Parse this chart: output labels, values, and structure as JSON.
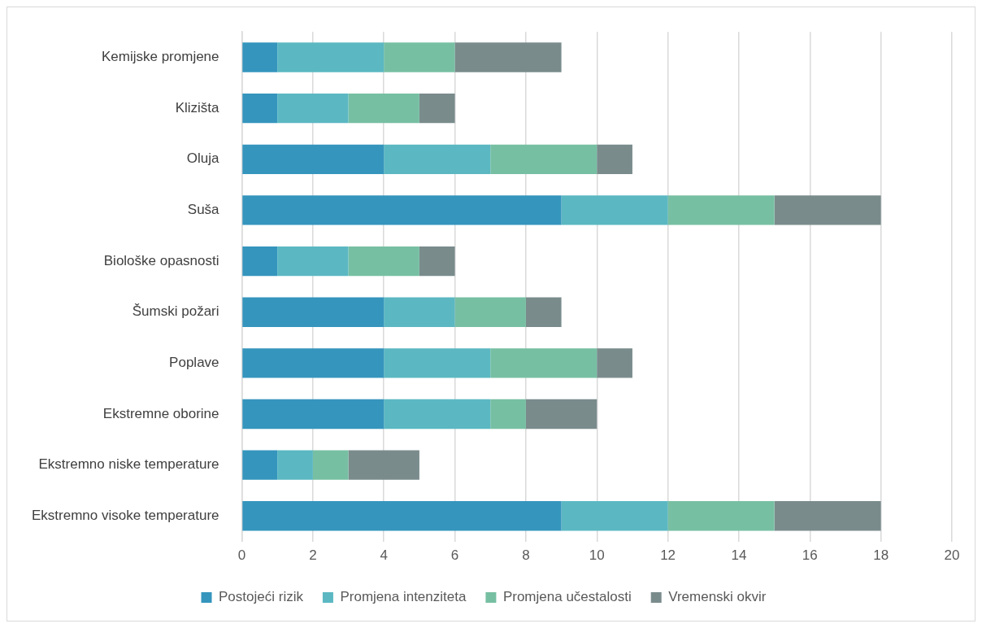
{
  "chart_data": {
    "type": "bar",
    "orientation": "horizontal",
    "stacked": true,
    "categories": [
      "Kemijske promjene",
      "Klizišta",
      "Oluja",
      "Suša",
      "Biološke opasnosti",
      "Šumski požari",
      "Poplave",
      "Ekstremne oborine",
      "Ekstremno niske temperature",
      "Ekstremno visoke temperature"
    ],
    "series": [
      {
        "name": "Postojeći rizik",
        "color": "#3595bd",
        "values": [
          1,
          1,
          4,
          9,
          1,
          4,
          4,
          4,
          1,
          9
        ]
      },
      {
        "name": "Promjena intenziteta",
        "color": "#5bb8c2",
        "values": [
          3,
          2,
          3,
          3,
          2,
          2,
          3,
          3,
          1,
          3
        ]
      },
      {
        "name": "Promjena učestalosti",
        "color": "#77bfa3",
        "values": [
          2,
          2,
          3,
          3,
          2,
          2,
          3,
          1,
          1,
          3
        ]
      },
      {
        "name": "Vremenski okvir",
        "color": "#7a8b8c",
        "values": [
          3,
          1,
          1,
          3,
          1,
          1,
          1,
          2,
          2,
          3
        ]
      }
    ],
    "xlim": [
      0,
      20
    ],
    "xticks": [
      0,
      2,
      4,
      6,
      8,
      10,
      12,
      14,
      16,
      18,
      20
    ],
    "grid": "x",
    "legend": "bottom"
  }
}
